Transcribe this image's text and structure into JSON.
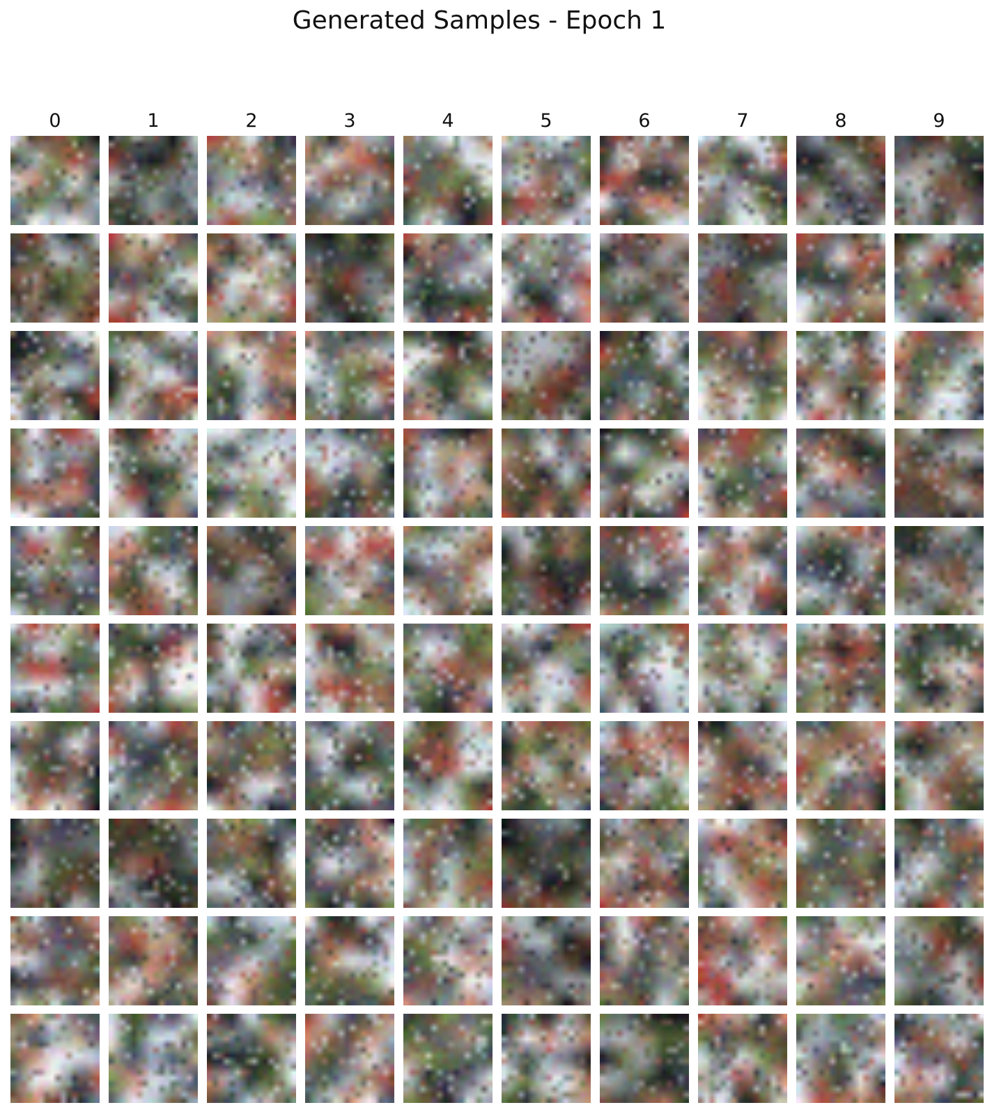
{
  "figure": {
    "title": "Generated Samples - Epoch 1",
    "column_labels": [
      "0",
      "1",
      "2",
      "3",
      "4",
      "5",
      "6",
      "7",
      "8",
      "9"
    ],
    "rows": 10,
    "cols": 10
  }
}
